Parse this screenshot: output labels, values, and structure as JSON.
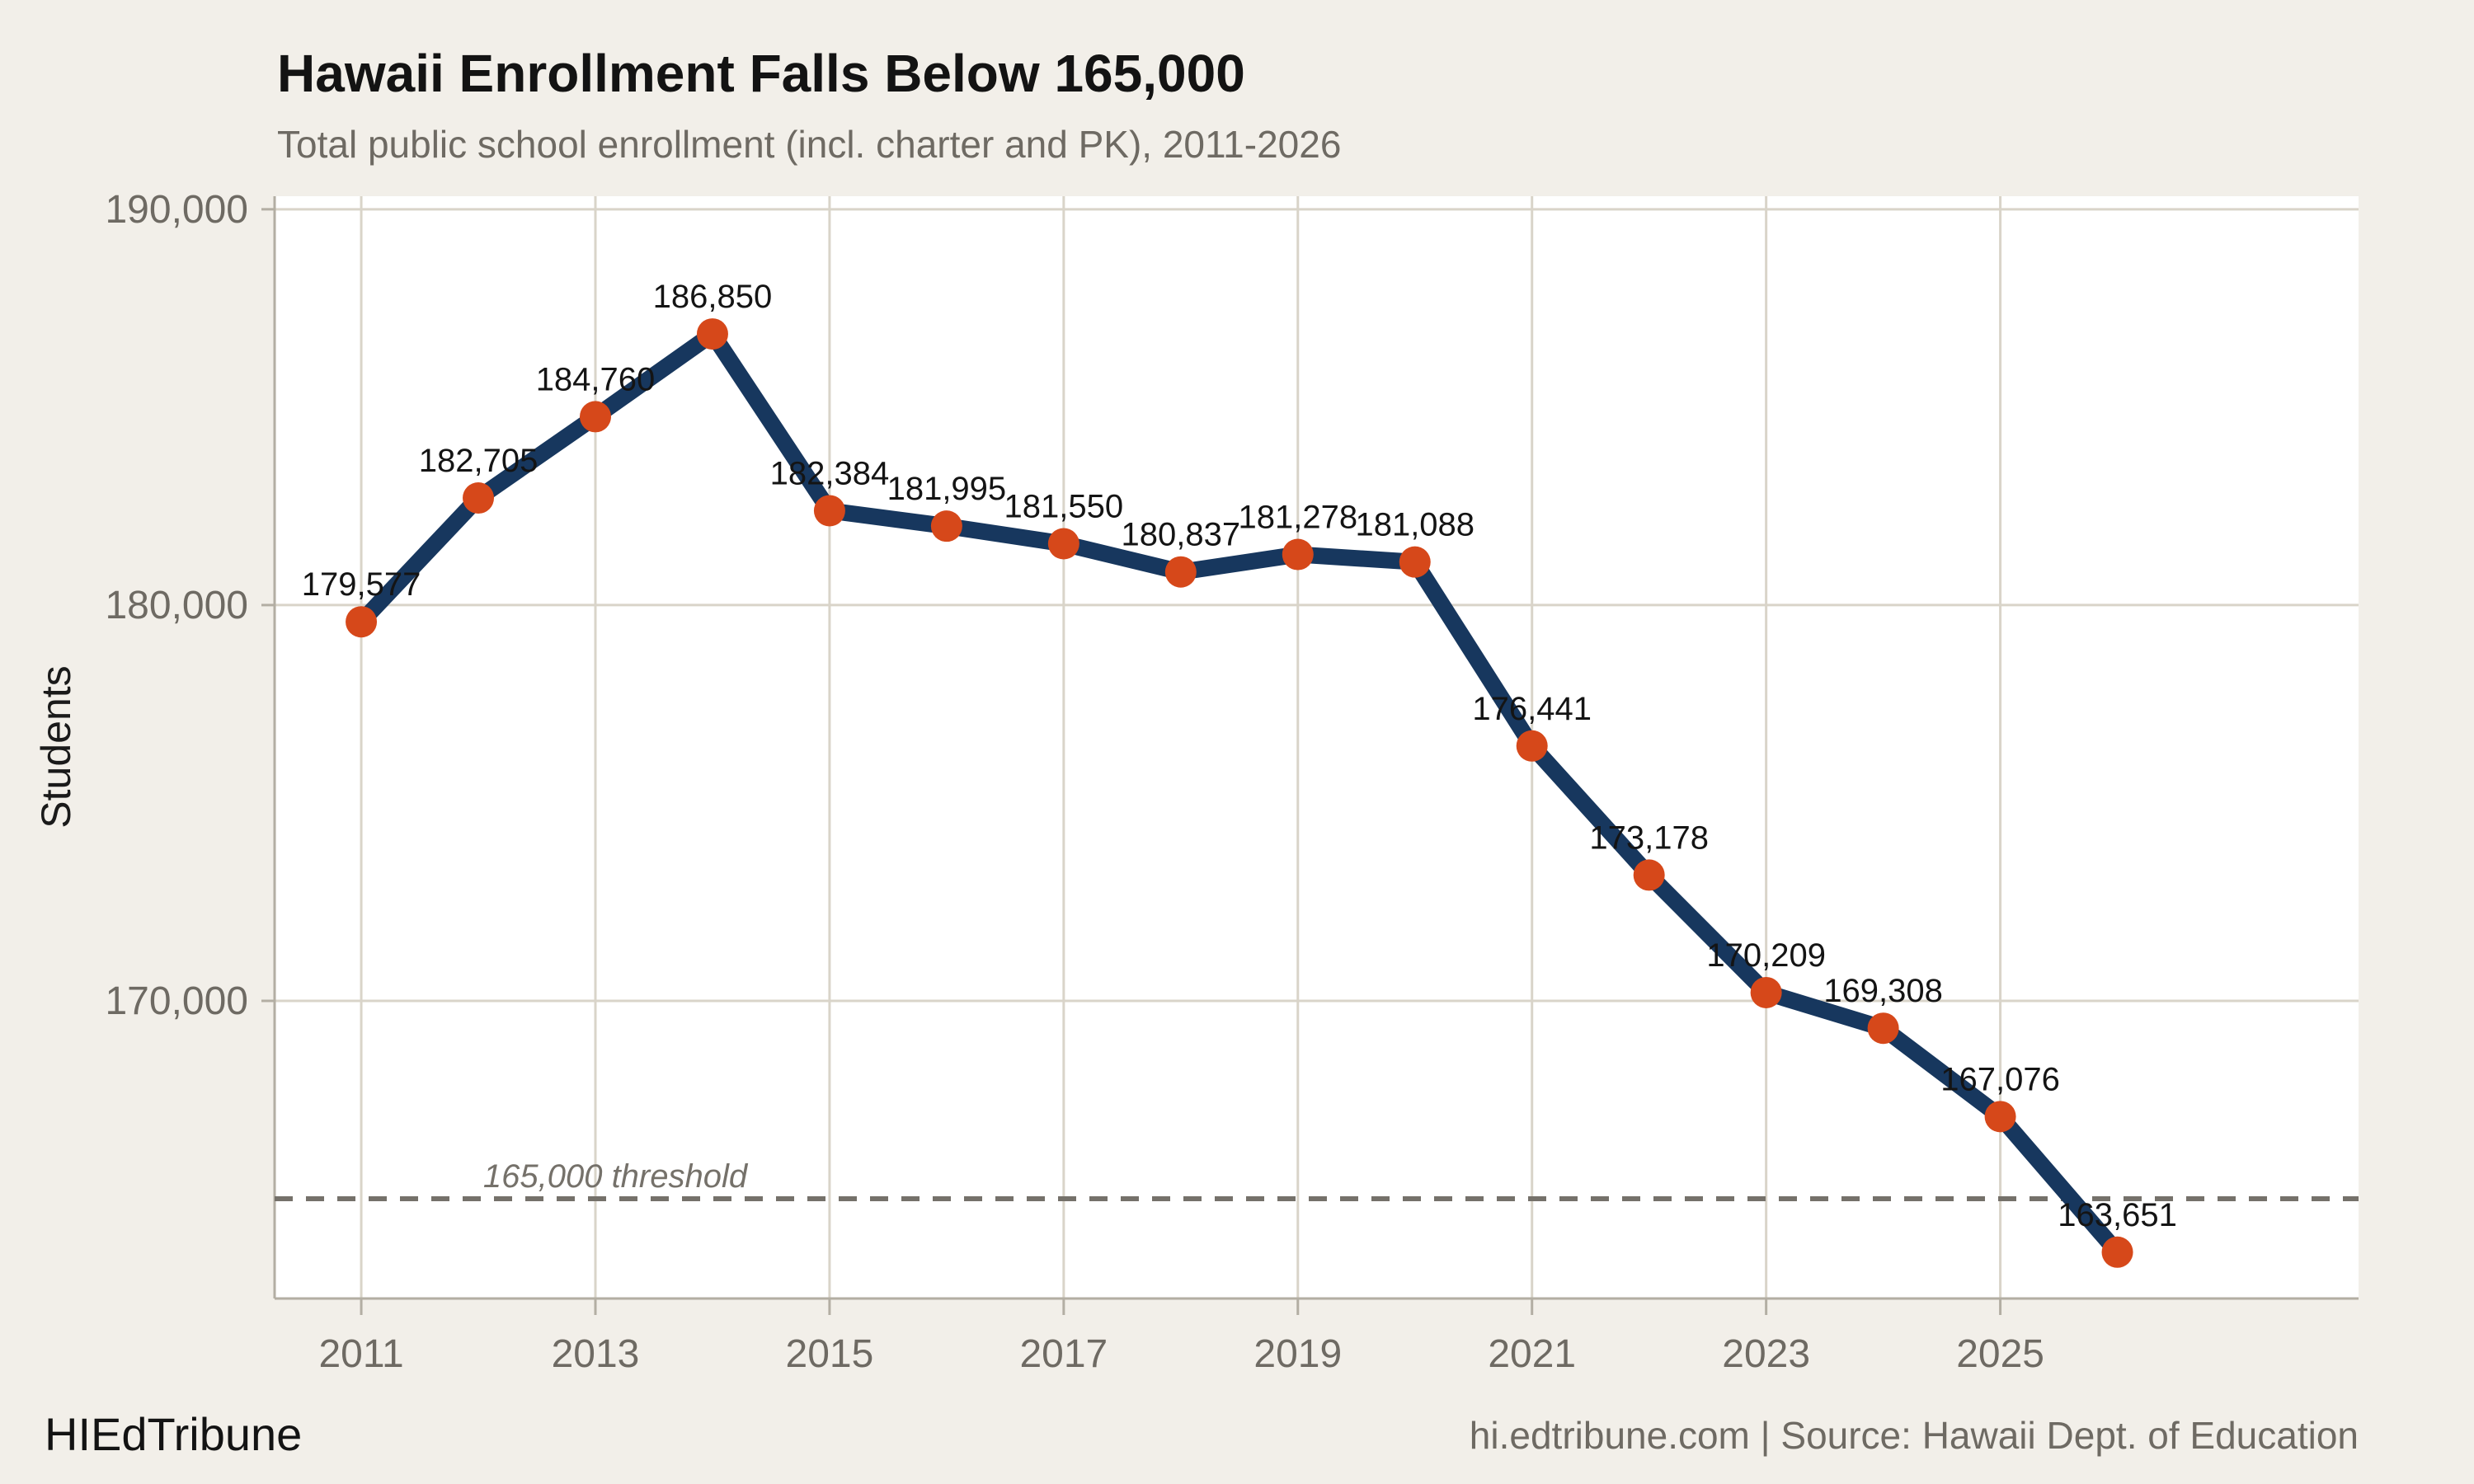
{
  "header": {
    "title": "Hawaii Enrollment Falls Below 165,000",
    "subtitle": "Total public school enrollment (incl. charter and PK), 2011-2026"
  },
  "footer": {
    "brand": "HIEdTribune",
    "attribution": "hi.edtribune.com | Source: Hawaii Dept. of Education"
  },
  "chart_data": {
    "type": "line",
    "title": "Hawaii Enrollment Falls Below 165,000",
    "subtitle": "Total public school enrollment (incl. charter and PK), 2011-2026",
    "xlabel": "",
    "ylabel": "Students",
    "x": [
      2011,
      2012,
      2013,
      2014,
      2015,
      2016,
      2017,
      2018,
      2019,
      2020,
      2021,
      2022,
      2023,
      2024,
      2025,
      2026
    ],
    "values": [
      179577,
      182705,
      184760,
      186850,
      182384,
      181995,
      181550,
      180837,
      181278,
      181088,
      176441,
      173178,
      170209,
      169308,
      167076,
      163651
    ],
    "point_labels": [
      "179,577",
      "182,705",
      "184,760",
      "186,850",
      "182,384",
      "181,995",
      "181,550",
      "180,837",
      "181,278",
      "181,088",
      "176,441",
      "173,178",
      "170,209",
      "169,308",
      "167,076",
      "163,651"
    ],
    "x_ticks": [
      2011,
      2013,
      2015,
      2017,
      2019,
      2021,
      2023,
      2025
    ],
    "y_ticks": [
      {
        "v": 190000,
        "label": "190,000"
      },
      {
        "v": 180000,
        "label": "180,000"
      },
      {
        "v": 170000,
        "label": "170,000"
      }
    ],
    "xlim": [
      2010.26,
      2028.06
    ],
    "ylim": [
      162480,
      190330
    ],
    "grid": true,
    "legend_position": "none",
    "threshold": {
      "value": 165000,
      "label": "165,000 threshold"
    },
    "colors": {
      "line": "#17375e",
      "point": "#d6481a",
      "grid": "#d9d4c9",
      "axis": "#b3aea3",
      "threshold": "#75716a",
      "background": "#f2efe9",
      "plot_background": "#ffffff",
      "title_text": "#131313",
      "muted_text": "#6e6a63",
      "label_text": "#141414",
      "ylabel_text": "#1a1a1a"
    }
  }
}
